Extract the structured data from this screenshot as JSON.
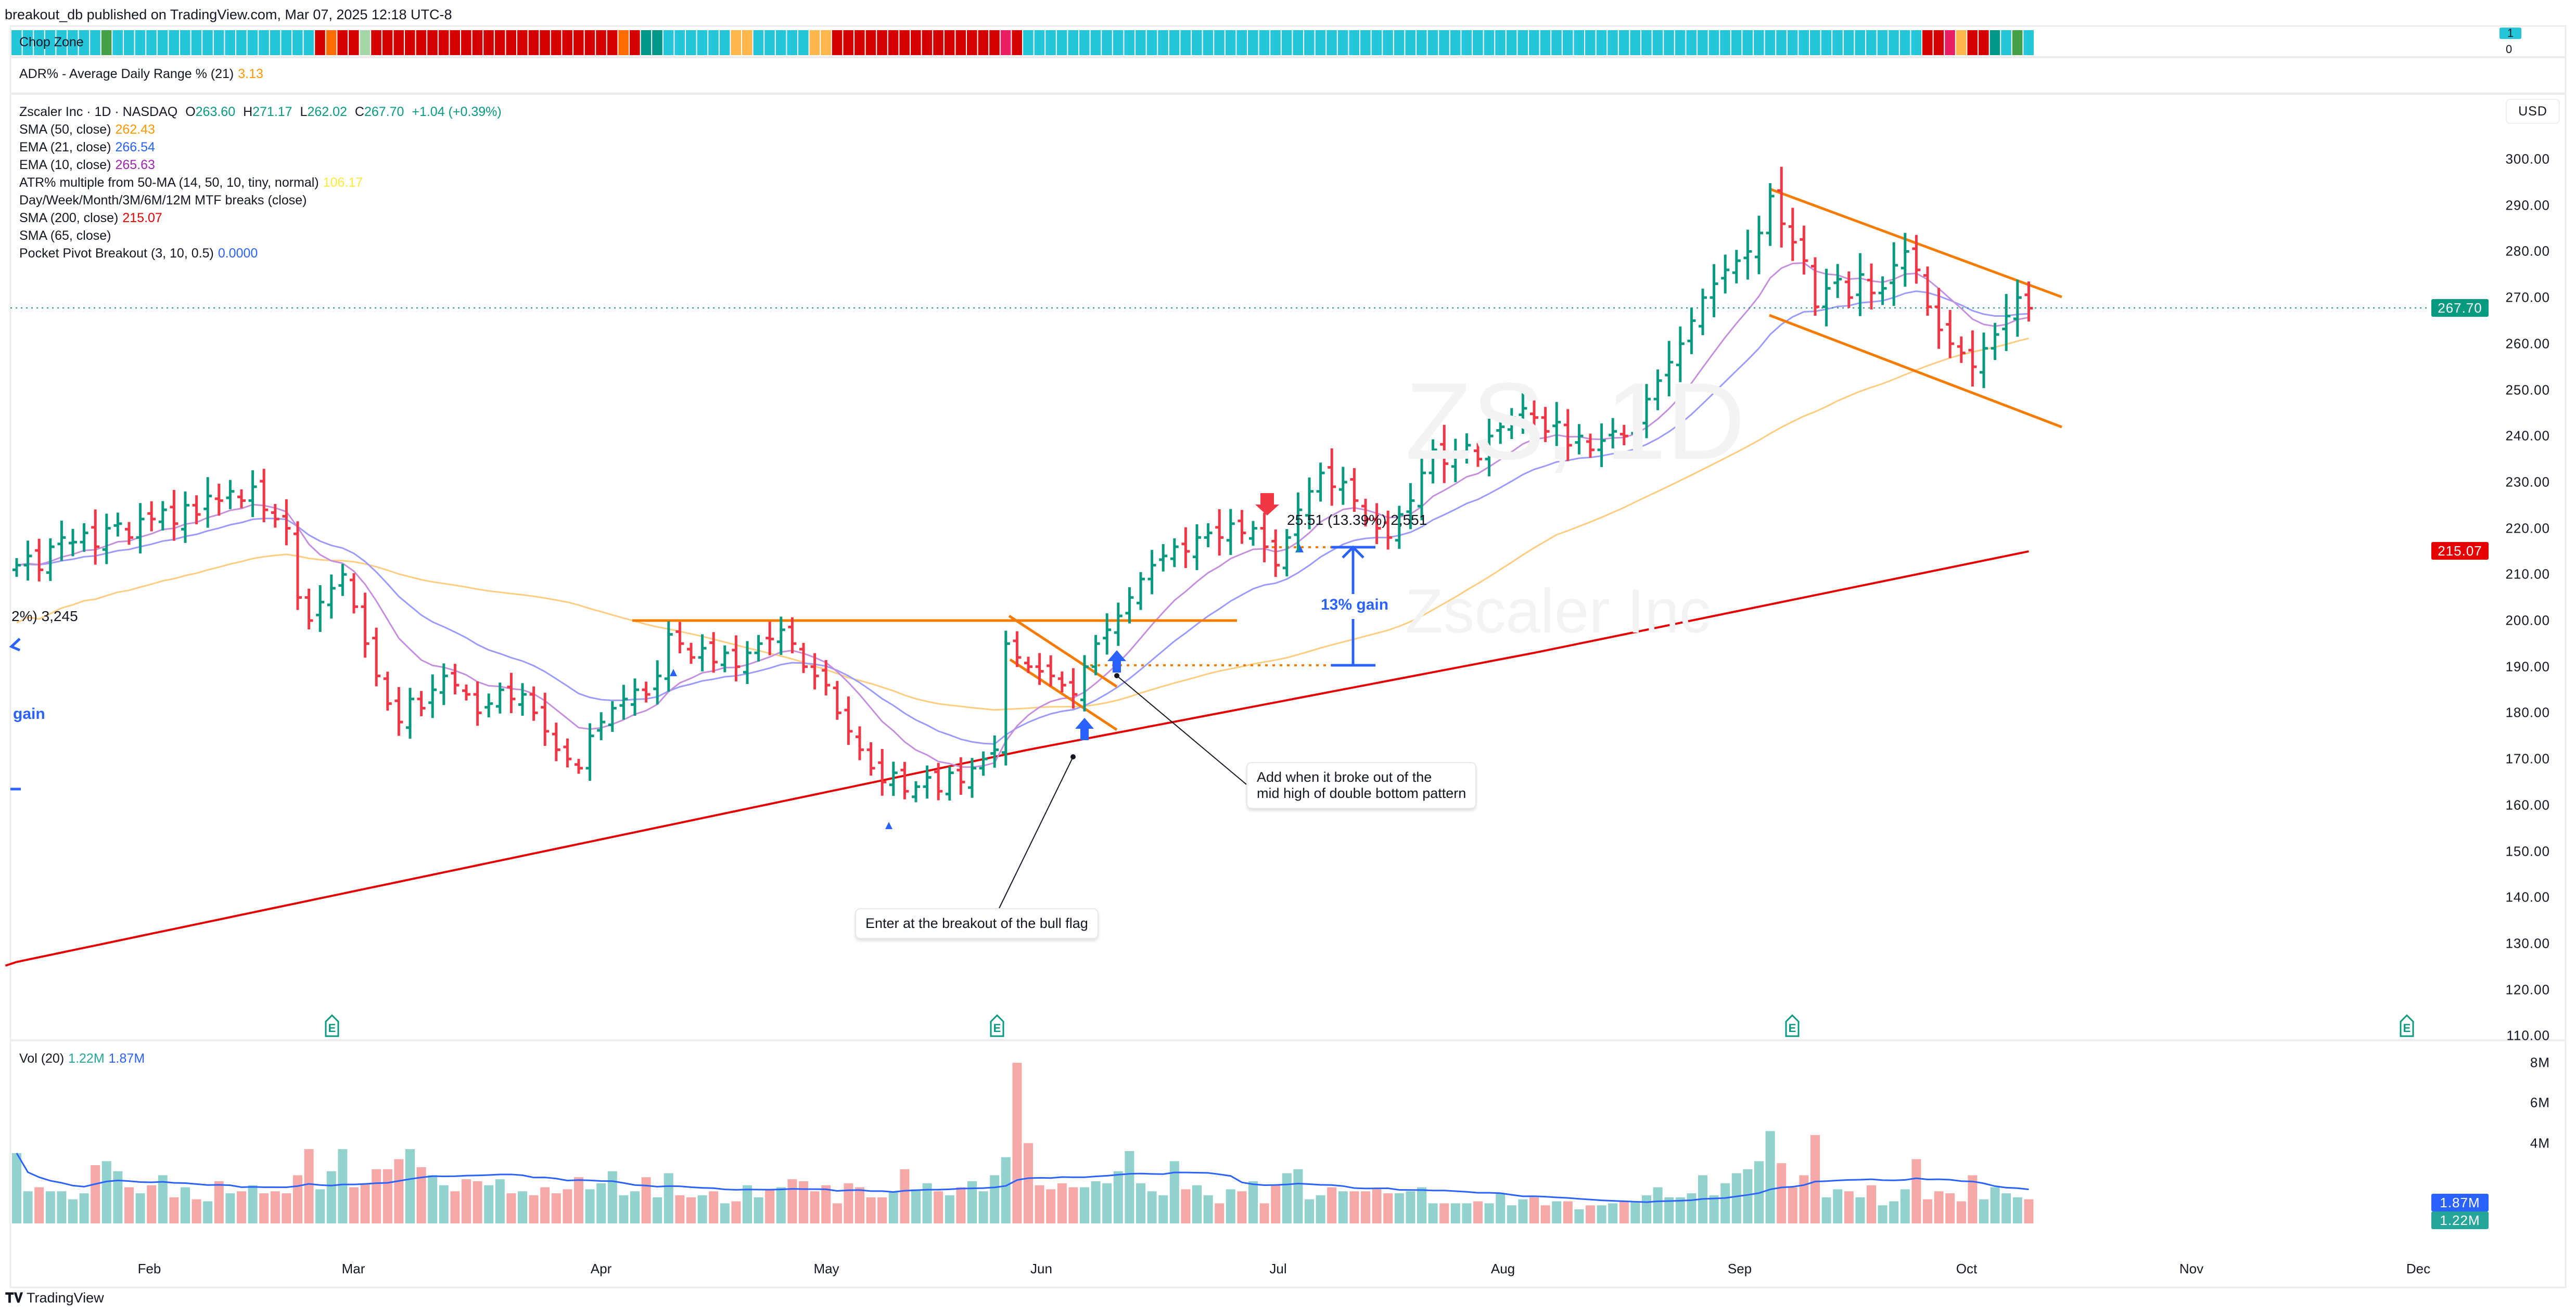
{
  "header": {
    "published": "breakout_db published on TradingView.com, Mar 07, 2025 12:18 UTC-8"
  },
  "chop_zone": {
    "label": "Chop Zone",
    "scale_top": "1",
    "scale_bottom": "0",
    "colors": {
      "cyan": "#26c6da",
      "green": "#43a047",
      "teal": "#009688",
      "lightgreen": "#a5d6a7",
      "red": "#d50000",
      "orange": "#ff6d00",
      "lightorange": "#ffb74d",
      "pink": "#e91e63"
    },
    "runs": [
      [
        "cyan",
        8
      ],
      [
        "green",
        1
      ],
      [
        "cyan",
        18
      ],
      [
        "red",
        1
      ],
      [
        "orange",
        1
      ],
      [
        "red",
        2
      ],
      [
        "lightgreen",
        1
      ],
      [
        "red",
        22
      ],
      [
        "orange",
        1
      ],
      [
        "red",
        1
      ],
      [
        "teal",
        2
      ],
      [
        "cyan",
        6
      ],
      [
        "lightorange",
        2
      ],
      [
        "cyan",
        5
      ],
      [
        "lightorange",
        2
      ],
      [
        "red",
        15
      ],
      [
        "pink",
        1
      ],
      [
        "red",
        1
      ],
      [
        "cyan",
        80
      ],
      [
        "red",
        2
      ],
      [
        "pink",
        1
      ],
      [
        "lightorange",
        1
      ],
      [
        "red",
        2
      ],
      [
        "teal",
        1
      ],
      [
        "cyan",
        1
      ],
      [
        "green",
        1
      ],
      [
        "cyan",
        1
      ]
    ]
  },
  "adr": {
    "label": "ADR% - Average Daily Range % (21)",
    "value": "3.13",
    "color": "#ff9800"
  },
  "legend": {
    "symbol": "Zscaler Inc · 1D · NASDAQ",
    "o_label": "O",
    "o": "263.60",
    "h_label": "H",
    "h": "271.17",
    "l_label": "L",
    "l": "262.02",
    "c_label": "C",
    "c": "267.70",
    "change": "+1.04 (+0.39%)",
    "indicators": [
      {
        "label": "SMA (50, close)",
        "value": "262.43",
        "color": "#ff9800"
      },
      {
        "label": "EMA (21, close)",
        "value": "266.54",
        "color": "#2962ff"
      },
      {
        "label": "EMA (10, close)",
        "value": "265.63",
        "color": "#9c27b0"
      },
      {
        "label": "ATR% multiple from 50-MA (14, 50, 10, tiny, normal)",
        "value": "106.17",
        "color": "#ffeb3b"
      },
      {
        "label": "Day/Week/Month/3M/6M/12M MTF breaks (close)",
        "value": "",
        "color": "#131722"
      },
      {
        "label": "SMA (200, close)",
        "value": "215.07",
        "color": "#e50000"
      },
      {
        "label": "SMA (65, close)",
        "value": "",
        "color": "#131722"
      },
      {
        "label": "Pocket Pivot Breakout (3, 10, 0.5)",
        "value": "0.0000",
        "color": "#2962ff"
      }
    ]
  },
  "watermark": {
    "symbol": "ZS, 1D",
    "name": "Zscaler Inc"
  },
  "price_axis": {
    "currency": "USD",
    "ticks": [
      "300.00",
      "290.00",
      "280.00",
      "270.00",
      "260.00",
      "250.00",
      "240.00",
      "230.00",
      "220.00",
      "210.00",
      "200.00",
      "190.00",
      "180.00",
      "170.00",
      "160.00",
      "150.00",
      "140.00",
      "130.00",
      "120.00",
      "110.00"
    ],
    "last_price_tag": "267.70",
    "sma200_tag": "215.07"
  },
  "annotations": {
    "measure_left": "2%) 3,245",
    "gain_left": "gain",
    "measure_mid": "25.51 (13.39%) 2,551",
    "gain_mid": "13% gain",
    "callout_add": [
      "Add when it broke out of the",
      "mid high of double bottom pattern"
    ],
    "callout_enter": "Enter at the breakout of the bull flag",
    "earnings_marker": "E"
  },
  "volume": {
    "label": "Vol (20)",
    "value": "1.22M",
    "ma_value": "1.87M",
    "axis_ticks": [
      "8M",
      "6M",
      "4M"
    ],
    "tag_ma": "1.87M",
    "tag_vol": "1.22M"
  },
  "time_axis": {
    "months": [
      "Feb",
      "Mar",
      "Apr",
      "May",
      "Jun",
      "Jul",
      "Aug",
      "Sep",
      "Oct",
      "Nov",
      "Dec"
    ]
  },
  "footer": {
    "brand": "TradingView"
  },
  "chart_data": {
    "type": "ohlc",
    "symbol": "Zscaler Inc · 1D · NASDAQ",
    "ylim": [
      110,
      300
    ],
    "colors": {
      "up": "#089981",
      "down": "#f23645",
      "vol_up": "#92d2cc",
      "vol_down": "#f7a9a7",
      "ema10": "#c58fdd",
      "ema21": "#9a9aff",
      "sma50": "#ffcc80",
      "sma200": "#e50000",
      "vol_ma": "#2962ff",
      "drawing": "#f57c00",
      "marker": "#2962ff"
    },
    "closes": [
      212,
      214,
      211,
      216,
      218,
      217,
      219,
      216,
      220,
      221,
      218,
      222,
      222,
      224,
      221,
      225,
      223,
      227,
      226,
      228,
      226,
      229,
      224,
      222,
      220,
      205,
      200,
      204,
      207,
      210,
      203,
      195,
      188,
      182,
      178,
      183,
      181,
      185,
      188,
      186,
      184,
      180,
      182,
      185,
      183,
      184,
      180,
      176,
      172,
      170,
      168,
      175,
      178,
      181,
      183,
      185,
      184,
      188,
      197,
      195,
      192,
      194,
      191,
      193,
      190,
      193,
      195,
      196,
      198,
      195,
      190,
      188,
      186,
      180,
      176,
      172,
      168,
      165,
      167,
      163,
      164,
      166,
      163,
      167,
      165,
      168,
      170,
      172,
      195,
      192,
      190,
      189,
      188,
      186,
      184,
      190,
      195,
      198,
      201,
      205,
      209,
      212,
      214,
      216,
      215,
      218,
      219,
      218,
      221,
      219,
      220,
      216,
      212,
      218,
      224,
      228,
      232,
      229,
      230,
      226,
      222,
      220,
      218,
      223,
      226,
      232,
      237,
      234,
      236,
      238,
      235,
      240,
      242,
      244,
      246,
      244,
      241,
      243,
      238,
      240,
      237,
      239,
      241,
      240,
      244,
      248,
      252,
      256,
      260,
      265,
      270,
      273,
      276,
      278,
      280,
      284,
      292,
      286,
      282,
      278,
      268,
      272,
      274,
      270,
      275,
      271,
      272,
      277,
      280,
      276,
      268,
      263,
      260,
      258,
      255,
      259,
      262,
      266,
      270,
      267.7
    ],
    "volumes_m": [
      3.5,
      1.6,
      1.8,
      1.6,
      1.6,
      1.2,
      1.5,
      2.9,
      3.1,
      2.6,
      1.8,
      1.5,
      1.9,
      2.4,
      1.3,
      1.8,
      1.2,
      1.1,
      2.1,
      1.5,
      1.6,
      1.9,
      1.5,
      1.6,
      1.5,
      2.4,
      3.7,
      1.7,
      2.6,
      3.7,
      1.8,
      2.0,
      2.7,
      2.7,
      3.2,
      3.7,
      2.8,
      2.4,
      1.9,
      1.6,
      2.2,
      2.1,
      1.9,
      2.2,
      1.5,
      1.6,
      1.4,
      1.8,
      1.5,
      1.7,
      2.3,
      1.7,
      2.0,
      2.6,
      1.4,
      1.6,
      2.3,
      1.3,
      2.5,
      1.4,
      1.3,
      1.4,
      1.6,
      1.0,
      1.1,
      1.9,
      1.3,
      1.7,
      1.8,
      2.2,
      2.1,
      1.6,
      1.9,
      1.0,
      2.0,
      1.8,
      1.3,
      1.3,
      1.6,
      2.7,
      1.7,
      2.0,
      1.6,
      1.4,
      1.8,
      2.1,
      1.6,
      2.4,
      3.3,
      8.0,
      4.0,
      1.9,
      1.7,
      2.0,
      1.8,
      1.8,
      2.1,
      2.0,
      2.6,
      3.6,
      2.0,
      1.6,
      1.4,
      3.1,
      1.7,
      1.9,
      1.4,
      1.0,
      1.7,
      1.6,
      2.1,
      1.0,
      1.9,
      2.5,
      2.7,
      1.2,
      1.4,
      1.8,
      1.6,
      1.6,
      1.6,
      1.7,
      1.5,
      1.5,
      1.6,
      1.8,
      1.0,
      1.0,
      1.0,
      1.0,
      1.1,
      1.0,
      1.5,
      0.9,
      1.2,
      1.3,
      0.9,
      1.1,
      1.1,
      0.7,
      0.9,
      0.9,
      1.0,
      1.1,
      1.1,
      1.4,
      1.8,
      1.3,
      1.3,
      1.5,
      2.4,
      1.4,
      2.0,
      2.5,
      2.7,
      3.1,
      4.6,
      3.0,
      1.8,
      2.4,
      4.4,
      1.3,
      1.7,
      1.6,
      1.3,
      1.9,
      0.9,
      1.1,
      1.7,
      3.2,
      1.2,
      1.6,
      1.5,
      1.1,
      2.4,
      1.2,
      1.8,
      1.5,
      1.3,
      1.2
    ],
    "sma200_path": [
      [
        0,
        126
      ],
      [
        45,
        149
      ],
      [
        90,
        172
      ],
      [
        135,
        193
      ],
      [
        179,
        215
      ]
    ],
    "resistance_level": 200,
    "measure": {
      "change": 25.51,
      "change_pct": 13.39
    }
  }
}
